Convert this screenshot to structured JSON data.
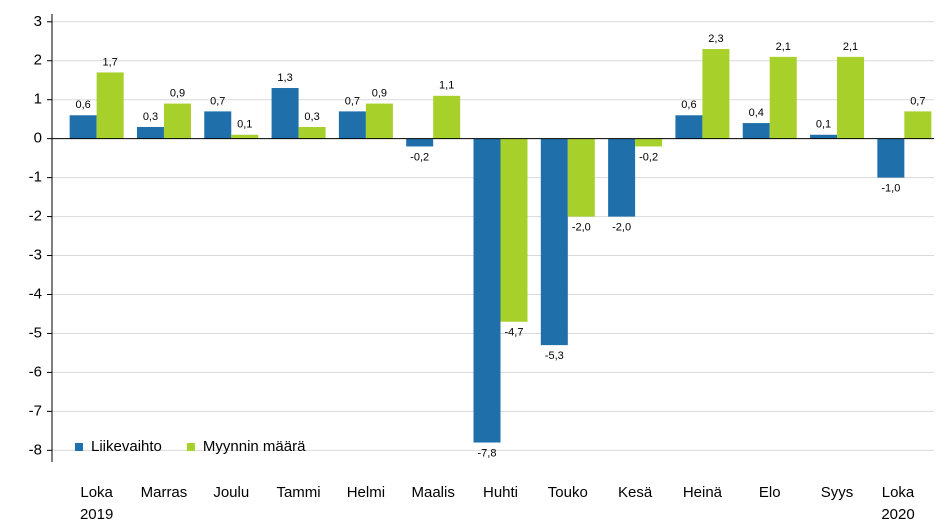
{
  "chart_data": {
    "type": "bar",
    "categories": [
      "Loka\n2019",
      "Marras",
      "Joulu",
      "Tammi",
      "Helmi",
      "Maalis",
      "Huhti",
      "Touko",
      "Kesä",
      "Heinä",
      "Elo",
      "Syys",
      "Loka\n2020"
    ],
    "series": [
      {
        "name": "Liikevaihto",
        "color": "#1f6fab",
        "values": [
          0.6,
          0.3,
          0.7,
          1.3,
          0.7,
          -0.2,
          -7.8,
          -5.3,
          -2.0,
          0.6,
          0.4,
          0.1,
          -1.0
        ],
        "value_labels": [
          "0,6",
          "0,3",
          "0,7",
          "1,3",
          "0,7",
          "-0,2",
          "-7,8",
          "-5,3",
          "-2,0",
          "0,6",
          "0,4",
          "0,1",
          "-1,0"
        ]
      },
      {
        "name": "Myynnin määrä",
        "color": "#a8d02a",
        "values": [
          1.7,
          0.9,
          0.1,
          0.3,
          0.9,
          1.1,
          -4.7,
          -2.0,
          -0.2,
          2.3,
          2.1,
          2.1,
          0.7
        ],
        "value_labels": [
          "1,7",
          "0,9",
          "0,1",
          "0,3",
          "0,9",
          "1,1",
          "-4,7",
          "-2,0",
          "-0,2",
          "2,3",
          "2,1",
          "2,1",
          "0,7"
        ]
      }
    ],
    "ylim": [
      -8.3,
      3.2
    ],
    "yticks": [
      -8,
      -7,
      -6,
      -5,
      -4,
      -3,
      -2,
      -1,
      0,
      1,
      2,
      3
    ],
    "grid": true,
    "legend": "lower left"
  }
}
